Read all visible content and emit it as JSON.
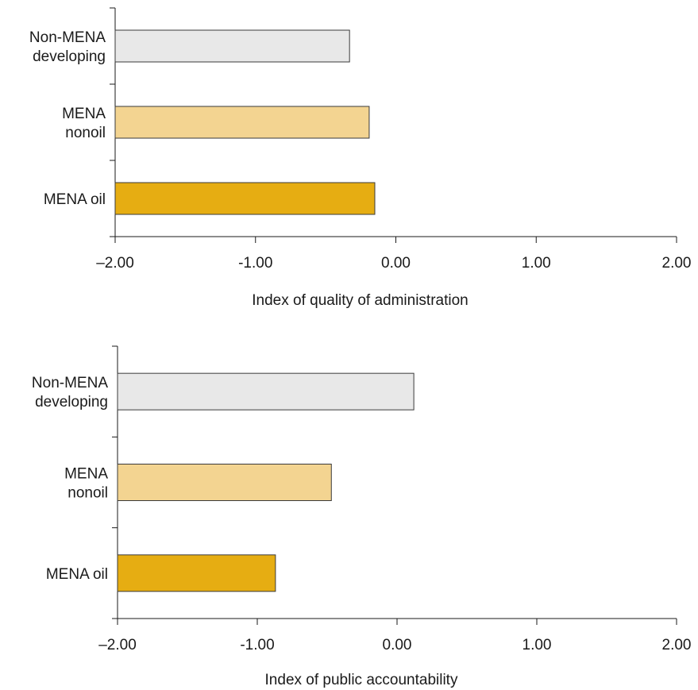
{
  "chart_data": [
    {
      "type": "bar",
      "orientation": "horizontal",
      "categories": [
        "Non-MENA|developing",
        "MENA|nonoil",
        "MENA oil"
      ],
      "values": [
        -0.33,
        -0.19,
        -0.15
      ],
      "bar_colors": [
        "#e8e8e8",
        "#f3d491",
        "#e6ad12"
      ],
      "xlabel": "Index of quality of administration",
      "ylabel": "",
      "xlim": [
        -2,
        2
      ],
      "xticks": [
        -2,
        -1,
        0,
        1,
        2
      ],
      "xtick_labels": [
        "–2.00",
        "-1.00",
        "0.00",
        "1.00",
        "2.00"
      ],
      "grid": false,
      "legend": "none"
    },
    {
      "type": "bar",
      "orientation": "horizontal",
      "categories": [
        "Non-MENA|developing",
        "MENA|nonoil",
        "MENA oil"
      ],
      "values": [
        0.12,
        -0.47,
        -0.87
      ],
      "bar_colors": [
        "#e8e8e8",
        "#f3d491",
        "#e6ad12"
      ],
      "xlabel": "Index of public accountability",
      "ylabel": "",
      "xlim": [
        -2,
        2
      ],
      "xticks": [
        -2,
        -1,
        0,
        1,
        2
      ],
      "xtick_labels": [
        "–2.00",
        "-1.00",
        "0.00",
        "1.00",
        "2.00"
      ],
      "grid": false,
      "legend": "none"
    }
  ]
}
